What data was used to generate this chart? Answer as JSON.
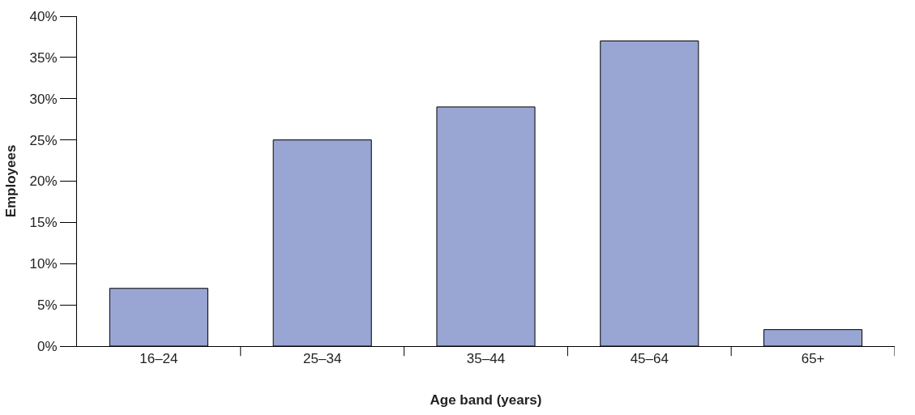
{
  "chart_data": {
    "type": "bar",
    "xlabel": "Age band (years)",
    "ylabel": "Employees",
    "categories": [
      "16–24",
      "25–34",
      "35–44",
      "45–64",
      "65+"
    ],
    "values": [
      7,
      25,
      29,
      37,
      2
    ],
    "color": "#99a5d3",
    "ylim": [
      0,
      40
    ],
    "yticks": [
      {
        "value": 0,
        "label": "0%"
      },
      {
        "value": 5,
        "label": "5%"
      },
      {
        "value": 10,
        "label": "10%"
      },
      {
        "value": 15,
        "label": "15%"
      },
      {
        "value": 20,
        "label": "20%"
      },
      {
        "value": 25,
        "label": "25%"
      },
      {
        "value": 30,
        "label": "30%"
      },
      {
        "value": 35,
        "label": "35%"
      },
      {
        "value": 40,
        "label": "40%"
      }
    ],
    "legend": false
  }
}
